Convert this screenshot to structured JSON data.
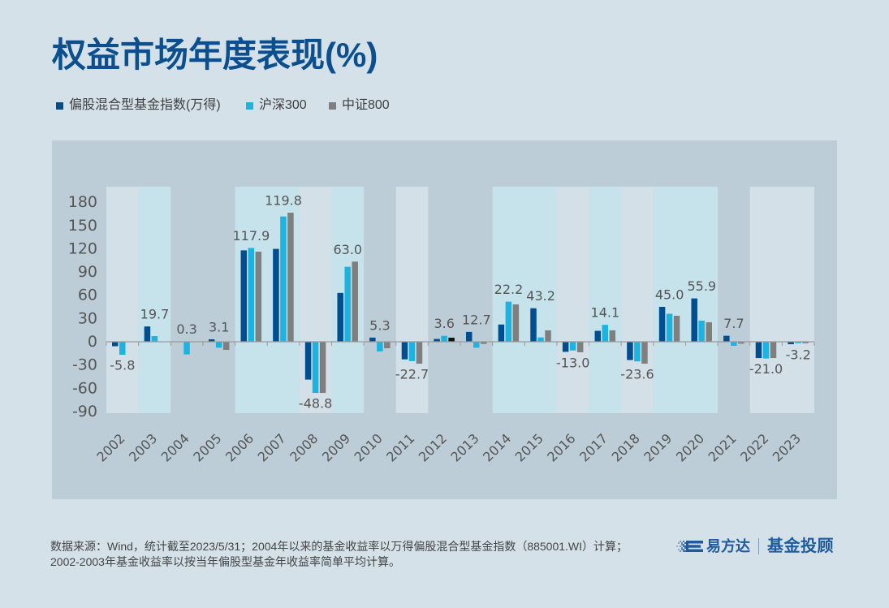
{
  "chart_data": {
    "type": "bar",
    "title": "权益市场年度表现(%)",
    "xlabel": "",
    "ylabel": "",
    "categories": [
      "2002",
      "2003",
      "2004",
      "2005",
      "2006",
      "2007",
      "2008",
      "2009",
      "2010",
      "2011",
      "2012",
      "2013",
      "2014",
      "2015",
      "2016",
      "2017",
      "2018",
      "2019",
      "2020",
      "2021",
      "2022",
      "2023"
    ],
    "series": [
      {
        "name": "偏股混合型基金指数(万得)",
        "color": "#004e8f",
        "values": [
          -5.8,
          19.7,
          0.3,
          3.1,
          117.9,
          119.8,
          -48.8,
          63.0,
          5.3,
          -22.7,
          3.6,
          12.7,
          22.2,
          43.2,
          -13.0,
          14.1,
          -23.6,
          45.0,
          55.9,
          7.7,
          -21.0,
          -3.2
        ]
      },
      {
        "name": "沪深300",
        "color": "#1db3e0",
        "values": [
          -16.8,
          7.3,
          -16.3,
          -7.7,
          121.0,
          161.6,
          -66.0,
          96.7,
          -12.5,
          -25.0,
          7.6,
          -7.7,
          51.7,
          5.6,
          -11.3,
          21.8,
          -25.3,
          36.1,
          27.2,
          -5.2,
          -21.6,
          -1.9
        ]
      },
      {
        "name": "中证800",
        "color": "#7f7f7f",
        "values": [
          null,
          null,
          null,
          -10.5,
          116.2,
          166.5,
          -66.0,
          103.4,
          -8.4,
          -28.3,
          5.2,
          -2.8,
          48.2,
          14.7,
          -13.6,
          14.7,
          -28.3,
          33.5,
          25.1,
          -2.5,
          -21.0,
          -2.0
        ],
        "point_colors": {
          "2012": "#111111"
        }
      }
    ],
    "data_label_series": 0,
    "data_labels": [
      "-5.8",
      "19.7",
      "0.3",
      "3.1",
      "117.9",
      "119.8",
      "-48.8",
      "63.0",
      "5.3",
      "-22.7",
      "3.6",
      "12.7",
      "22.2",
      "43.2",
      "-13.0",
      "14.1",
      "-23.6",
      "45.0",
      "55.9",
      "7.7",
      "-21.0",
      "-3.2"
    ],
    "yticks": [
      180,
      150,
      120,
      90,
      60,
      30,
      0,
      -30,
      -60,
      -90
    ],
    "ylim": [
      -90,
      180
    ],
    "grid": false,
    "legend_position": "top-left",
    "highlight_bands": [
      {
        "from": "2002",
        "to": "2002",
        "tone": "light"
      },
      {
        "from": "2003",
        "to": "2003",
        "tone": "cyan"
      },
      {
        "from": "2006",
        "to": "2007",
        "tone": "cyan"
      },
      {
        "from": "2008",
        "to": "2008",
        "tone": "light"
      },
      {
        "from": "2009",
        "to": "2009",
        "tone": "cyan"
      },
      {
        "from": "2011",
        "to": "2011",
        "tone": "light"
      },
      {
        "from": "2014",
        "to": "2015",
        "tone": "cyan"
      },
      {
        "from": "2016",
        "to": "2016",
        "tone": "light"
      },
      {
        "from": "2017",
        "to": "2017",
        "tone": "cyan"
      },
      {
        "from": "2018",
        "to": "2018",
        "tone": "light"
      },
      {
        "from": "2019",
        "to": "2020",
        "tone": "cyan"
      },
      {
        "from": "2022",
        "to": "2023",
        "tone": "light"
      }
    ],
    "band_colors": {
      "light": "#d3e0e8",
      "cyan": "#c6e3ec"
    },
    "axis_color": "#9a9a9a"
  },
  "footer": {
    "line1": "数据来源：Wind，统计截至2023/5/31；2004年以来的基金收益率以万得偏股混合型基金指数（885001.WI）计算；",
    "line2": "2002-2003年基金收益率以按当年偏股型基金年收益率简单平均计算。"
  },
  "brand": {
    "logo_icon": "pixel-e-logo-icon",
    "name": "易方达",
    "service": "基金投顾",
    "color": "#1d5a9e"
  }
}
